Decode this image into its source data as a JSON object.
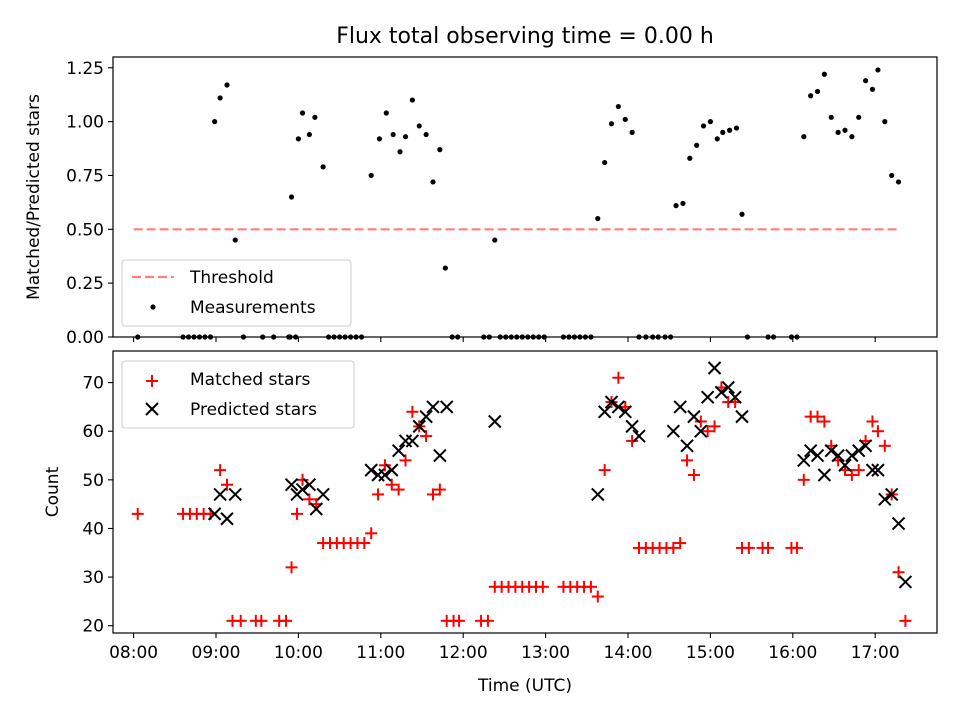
{
  "chart_data": [
    {
      "type": "scatter",
      "title": "Flux total observing time = 0.00 h",
      "xlabel": "",
      "ylabel": "Matched/Predicted stars",
      "xlim": [
        "07:45",
        "17:45"
      ],
      "ylim": [
        0,
        1.3
      ],
      "yticks": [
        0,
        0.25,
        0.5,
        0.75,
        1.0,
        1.25
      ],
      "ytick_labels": [
        "0.00",
        "0.25",
        "0.50",
        "0.75",
        "1.00",
        "1.25"
      ],
      "xticks": [
        "08:00",
        "09:00",
        "10:00",
        "11:00",
        "12:00",
        "13:00",
        "14:00",
        "15:00",
        "16:00",
        "17:00"
      ],
      "legend_position": "lower-left",
      "colors": {
        "threshold": "#ff7f7f",
        "measurements": "#000000"
      },
      "threshold": {
        "name": "Threshold",
        "y": 0.5,
        "x": [
          "08:00",
          "17:18"
        ]
      },
      "series": [
        {
          "name": "Measurements",
          "points": [
            [
              "08:03",
              0
            ],
            [
              "08:36",
              0
            ],
            [
              "08:40",
              0
            ],
            [
              "08:44",
              0
            ],
            [
              "08:48",
              0
            ],
            [
              "08:52",
              0
            ],
            [
              "08:56",
              0
            ],
            [
              "08:59",
              1.0
            ],
            [
              "09:03",
              1.11
            ],
            [
              "09:08",
              1.17
            ],
            [
              "09:14",
              0.45
            ],
            [
              "09:20",
              0
            ],
            [
              "09:34",
              0
            ],
            [
              "09:42",
              0
            ],
            [
              "09:54",
              0
            ],
            [
              "09:58",
              0
            ],
            [
              "09:53",
              0
            ],
            [
              "09:55",
              0.65
            ],
            [
              "10:00",
              0.92
            ],
            [
              "10:03",
              1.04
            ],
            [
              "10:08",
              0.94
            ],
            [
              "10:12",
              1.02
            ],
            [
              "10:18",
              0.79
            ],
            [
              "10:22",
              0
            ],
            [
              "10:26",
              0
            ],
            [
              "10:30",
              0
            ],
            [
              "10:34",
              0
            ],
            [
              "10:38",
              0
            ],
            [
              "10:42",
              0
            ],
            [
              "10:46",
              0
            ],
            [
              "10:53",
              0.75
            ],
            [
              "10:59",
              0.92
            ],
            [
              "11:04",
              1.04
            ],
            [
              "11:09",
              0.94
            ],
            [
              "11:14",
              0.86
            ],
            [
              "11:18",
              0.93
            ],
            [
              "11:23",
              1.1
            ],
            [
              "11:28",
              0.98
            ],
            [
              "11:33",
              0.94
            ],
            [
              "11:38",
              0.72
            ],
            [
              "11:43",
              0.87
            ],
            [
              "11:47",
              0.32
            ],
            [
              "11:52",
              0
            ],
            [
              "11:56",
              0
            ],
            [
              "12:15",
              0
            ],
            [
              "12:19",
              0
            ],
            [
              "12:23",
              0.45
            ],
            [
              "12:27",
              0
            ],
            [
              "12:31",
              0
            ],
            [
              "12:35",
              0
            ],
            [
              "12:39",
              0
            ],
            [
              "12:43",
              0
            ],
            [
              "12:47",
              0
            ],
            [
              "12:51",
              0
            ],
            [
              "12:55",
              0
            ],
            [
              "12:59",
              0
            ],
            [
              "13:13",
              0
            ],
            [
              "13:17",
              0
            ],
            [
              "13:21",
              0
            ],
            [
              "13:25",
              0
            ],
            [
              "13:29",
              0
            ],
            [
              "13:33",
              0
            ],
            [
              "13:38",
              0.55
            ],
            [
              "13:43",
              0.81
            ],
            [
              "13:48",
              0.99
            ],
            [
              "13:53",
              1.07
            ],
            [
              "13:58",
              1.01
            ],
            [
              "14:03",
              0.95
            ],
            [
              "14:08",
              0
            ],
            [
              "14:13",
              0
            ],
            [
              "14:18",
              0
            ],
            [
              "14:22",
              0
            ],
            [
              "14:27",
              0
            ],
            [
              "14:31",
              0
            ],
            [
              "14:35",
              0.61
            ],
            [
              "14:40",
              0.62
            ],
            [
              "14:45",
              0.83
            ],
            [
              "14:50",
              0.89
            ],
            [
              "14:55",
              0.98
            ],
            [
              "15:00",
              1.0
            ],
            [
              "15:05",
              0.92
            ],
            [
              "15:09",
              0.95
            ],
            [
              "15:14",
              0.96
            ],
            [
              "15:19",
              0.97
            ],
            [
              "15:23",
              0.57
            ],
            [
              "15:27",
              0
            ],
            [
              "15:42",
              0
            ],
            [
              "15:46",
              0
            ],
            [
              "15:59",
              0
            ],
            [
              "16:03",
              0
            ],
            [
              "16:08",
              0.93
            ],
            [
              "16:13",
              1.12
            ],
            [
              "16:18",
              1.14
            ],
            [
              "16:23",
              1.22
            ],
            [
              "16:28",
              1.02
            ],
            [
              "16:33",
              0.95
            ],
            [
              "16:38",
              0.96
            ],
            [
              "16:43",
              0.93
            ],
            [
              "16:48",
              1.02
            ],
            [
              "16:53",
              1.19
            ],
            [
              "16:58",
              1.15
            ],
            [
              "17:02",
              1.24
            ],
            [
              "17:07",
              1.0
            ],
            [
              "17:12",
              0.75
            ],
            [
              "17:17",
              0.72
            ]
          ]
        }
      ]
    },
    {
      "type": "scatter",
      "title": "",
      "xlabel": "Time (UTC)",
      "ylabel": "Count",
      "xlim": [
        "07:45",
        "17:45"
      ],
      "ylim": [
        18.5,
        76.5
      ],
      "yticks": [
        20,
        30,
        40,
        50,
        60,
        70
      ],
      "xticks": [
        "08:00",
        "09:00",
        "10:00",
        "11:00",
        "12:00",
        "13:00",
        "14:00",
        "15:00",
        "16:00",
        "17:00"
      ],
      "legend_position": "upper-left",
      "series": [
        {
          "name": "Matched stars",
          "marker": "plus",
          "color": "#ff0000",
          "points": [
            [
              "08:03",
              43
            ],
            [
              "08:36",
              43
            ],
            [
              "08:41",
              43
            ],
            [
              "08:46",
              43
            ],
            [
              "08:51",
              43
            ],
            [
              "08:56",
              43
            ],
            [
              "09:03",
              52
            ],
            [
              "09:08",
              49
            ],
            [
              "09:12",
              21
            ],
            [
              "09:18",
              21
            ],
            [
              "09:29",
              21
            ],
            [
              "09:33",
              21
            ],
            [
              "09:46",
              21
            ],
            [
              "09:51",
              21
            ],
            [
              "09:55",
              32
            ],
            [
              "09:59",
              43
            ],
            [
              "10:03",
              50
            ],
            [
              "10:08",
              46
            ],
            [
              "10:13",
              45
            ],
            [
              "10:18",
              37
            ],
            [
              "10:23",
              37
            ],
            [
              "10:28",
              37
            ],
            [
              "10:33",
              37
            ],
            [
              "10:38",
              37
            ],
            [
              "10:43",
              37
            ],
            [
              "10:48",
              37
            ],
            [
              "10:53",
              39
            ],
            [
              "10:58",
              47
            ],
            [
              "11:03",
              53
            ],
            [
              "11:08",
              49
            ],
            [
              "11:13",
              48
            ],
            [
              "11:18",
              54
            ],
            [
              "11:23",
              64
            ],
            [
              "11:28",
              61
            ],
            [
              "11:33",
              59
            ],
            [
              "11:38",
              47
            ],
            [
              "11:43",
              48
            ],
            [
              "11:48",
              21
            ],
            [
              "11:53",
              21
            ],
            [
              "11:57",
              21
            ],
            [
              "12:13",
              21
            ],
            [
              "12:18",
              21
            ],
            [
              "12:23",
              28
            ],
            [
              "12:28",
              28
            ],
            [
              "12:33",
              28
            ],
            [
              "12:38",
              28
            ],
            [
              "12:43",
              28
            ],
            [
              "12:48",
              28
            ],
            [
              "12:53",
              28
            ],
            [
              "12:58",
              28
            ],
            [
              "13:13",
              28
            ],
            [
              "13:18",
              28
            ],
            [
              "13:23",
              28
            ],
            [
              "13:28",
              28
            ],
            [
              "13:33",
              28
            ],
            [
              "13:38",
              26
            ],
            [
              "13:43",
              52
            ],
            [
              "13:48",
              66
            ],
            [
              "13:53",
              71
            ],
            [
              "13:58",
              65
            ],
            [
              "14:03",
              58
            ],
            [
              "14:08",
              36
            ],
            [
              "14:13",
              36
            ],
            [
              "14:18",
              36
            ],
            [
              "14:23",
              36
            ],
            [
              "14:28",
              36
            ],
            [
              "14:33",
              36
            ],
            [
              "14:38",
              37
            ],
            [
              "14:43",
              54
            ],
            [
              "14:48",
              51
            ],
            [
              "14:53",
              62
            ],
            [
              "14:58",
              60
            ],
            [
              "15:03",
              61
            ],
            [
              "15:08",
              69
            ],
            [
              "15:13",
              66
            ],
            [
              "15:18",
              66
            ],
            [
              "15:23",
              36
            ],
            [
              "15:28",
              36
            ],
            [
              "15:38",
              36
            ],
            [
              "15:42",
              36
            ],
            [
              "15:59",
              36
            ],
            [
              "16:03",
              36
            ],
            [
              "16:08",
              50
            ],
            [
              "16:13",
              63
            ],
            [
              "16:18",
              63
            ],
            [
              "16:23",
              62
            ],
            [
              "16:28",
              57
            ],
            [
              "16:33",
              54
            ],
            [
              "16:38",
              52
            ],
            [
              "16:43",
              51
            ],
            [
              "16:48",
              52
            ],
            [
              "16:53",
              58
            ],
            [
              "16:58",
              62
            ],
            [
              "17:02",
              60
            ],
            [
              "17:07",
              57
            ],
            [
              "17:12",
              47
            ],
            [
              "17:17",
              31
            ],
            [
              "17:22",
              21
            ]
          ]
        },
        {
          "name": "Predicted stars",
          "marker": "x",
          "color": "#000000",
          "points": [
            [
              "08:59",
              43
            ],
            [
              "09:03",
              47
            ],
            [
              "09:08",
              42
            ],
            [
              "09:14",
              47
            ],
            [
              "09:55",
              49
            ],
            [
              "09:59",
              47
            ],
            [
              "10:03",
              48
            ],
            [
              "10:08",
              49
            ],
            [
              "10:13",
              44
            ],
            [
              "10:18",
              47
            ],
            [
              "10:53",
              52
            ],
            [
              "10:58",
              51
            ],
            [
              "11:03",
              51
            ],
            [
              "11:08",
              52
            ],
            [
              "11:13",
              56
            ],
            [
              "11:18",
              58
            ],
            [
              "11:23",
              58
            ],
            [
              "11:28",
              61
            ],
            [
              "11:33",
              63
            ],
            [
              "11:38",
              65
            ],
            [
              "11:43",
              55
            ],
            [
              "11:48",
              65
            ],
            [
              "12:23",
              62
            ],
            [
              "13:38",
              47
            ],
            [
              "13:43",
              64
            ],
            [
              "13:48",
              66
            ],
            [
              "13:53",
              65
            ],
            [
              "13:58",
              64
            ],
            [
              "14:03",
              61
            ],
            [
              "14:08",
              59
            ],
            [
              "14:33",
              60
            ],
            [
              "14:38",
              65
            ],
            [
              "14:43",
              57
            ],
            [
              "14:48",
              63
            ],
            [
              "14:53",
              60
            ],
            [
              "14:58",
              67
            ],
            [
              "15:03",
              73
            ],
            [
              "15:08",
              68
            ],
            [
              "15:13",
              69
            ],
            [
              "15:18",
              67
            ],
            [
              "15:23",
              63
            ],
            [
              "16:08",
              54
            ],
            [
              "16:13",
              56
            ],
            [
              "16:18",
              55
            ],
            [
              "16:23",
              51
            ],
            [
              "16:28",
              56
            ],
            [
              "16:33",
              55
            ],
            [
              "16:38",
              53
            ],
            [
              "16:43",
              55
            ],
            [
              "16:48",
              56
            ],
            [
              "16:53",
              57
            ],
            [
              "16:58",
              52
            ],
            [
              "17:02",
              52
            ],
            [
              "17:07",
              46
            ],
            [
              "17:12",
              47
            ],
            [
              "17:17",
              41
            ],
            [
              "17:22",
              29
            ]
          ]
        }
      ]
    }
  ]
}
